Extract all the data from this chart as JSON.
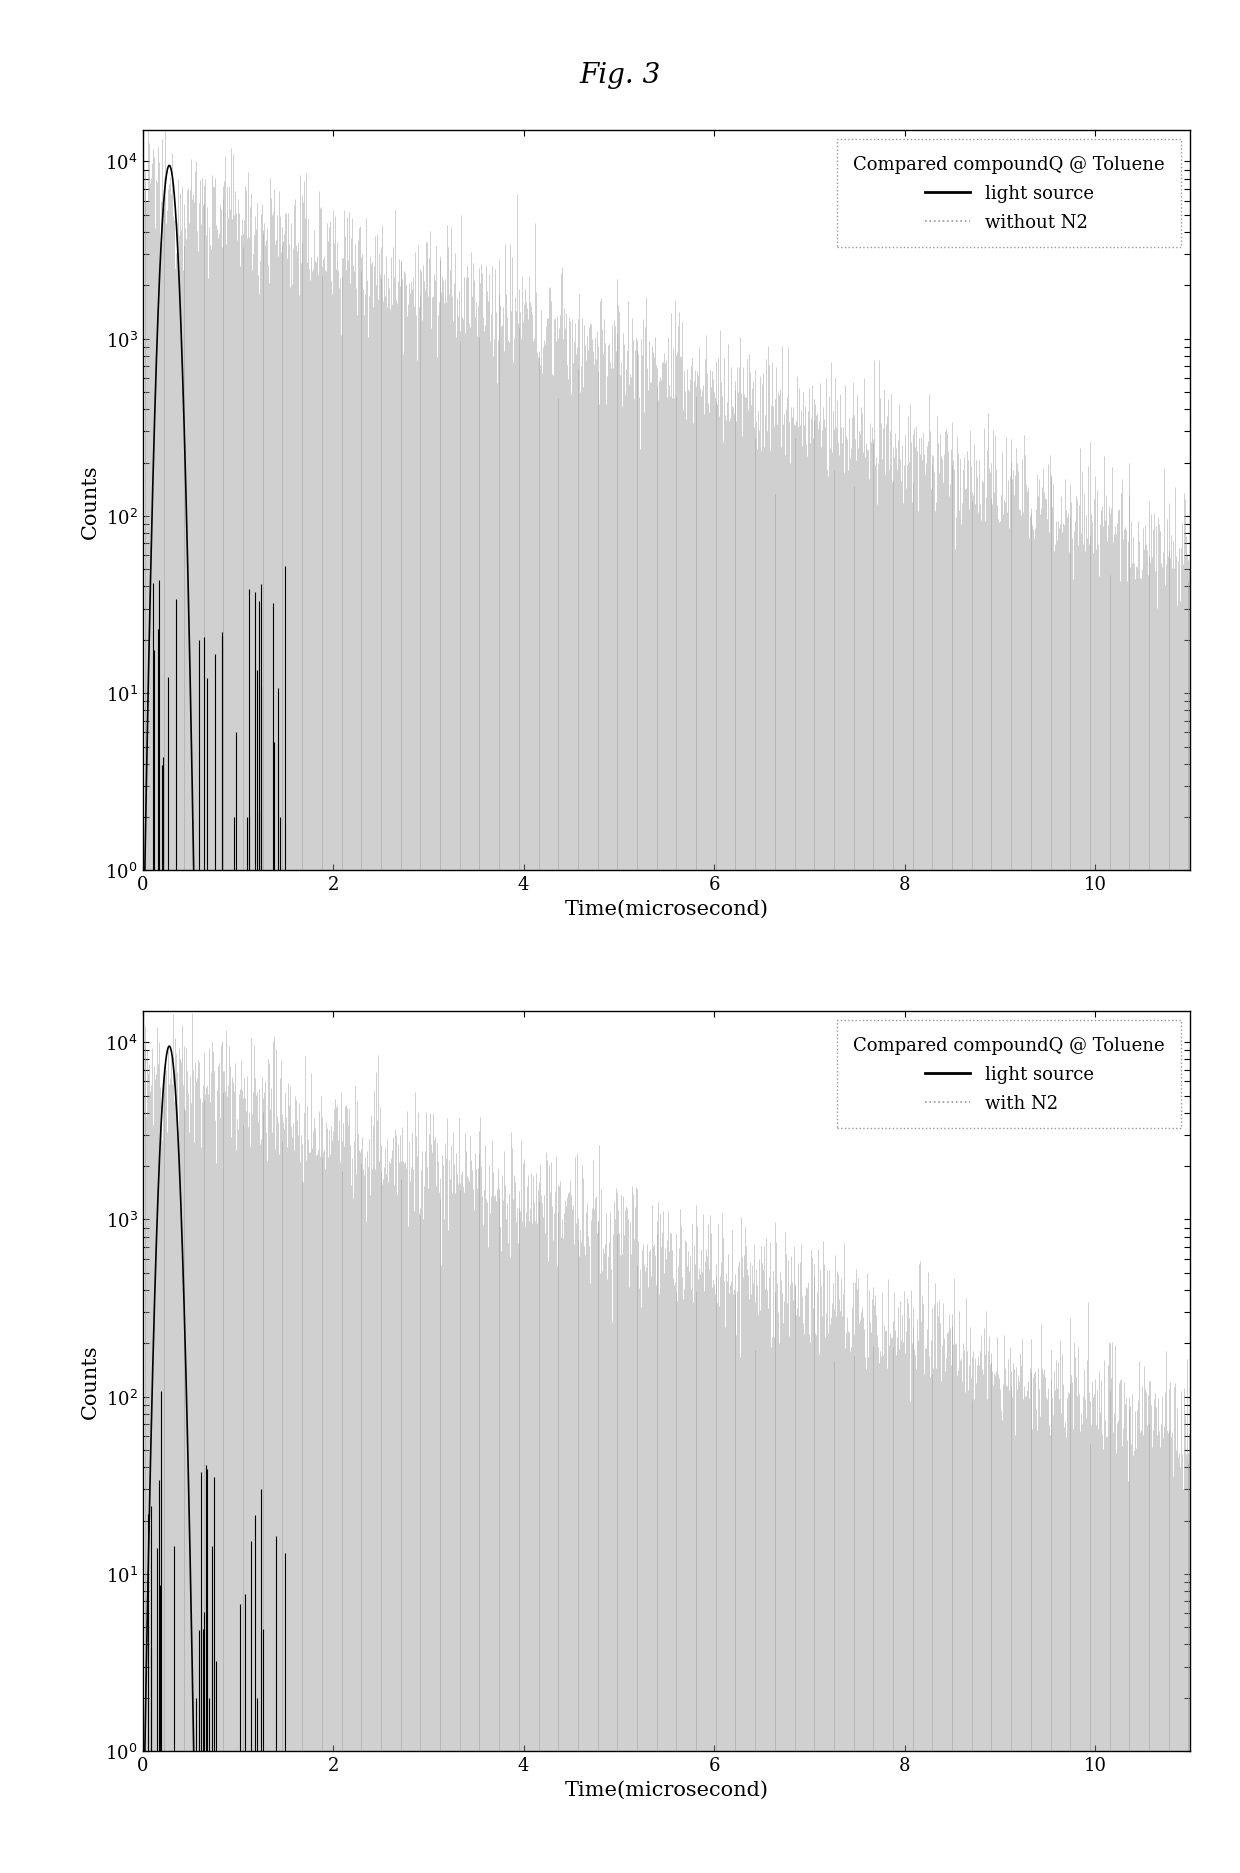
{
  "fig_title": "Fig. 3",
  "subplot1": {
    "title": "Compared compoundQ @ Toluene",
    "legend_line1": "light source",
    "legend_line2": "without N2",
    "xlabel": "Time(microsecond)",
    "ylabel": "Counts",
    "xlim": [
      0,
      11
    ],
    "ylim_log": [
      1,
      15000
    ],
    "xticks": [
      0,
      2,
      4,
      6,
      8,
      10
    ],
    "ytick_vals": [
      1,
      10,
      100,
      1000,
      10000
    ],
    "ytick_labels": [
      "10$^0$",
      "10$^1$",
      "10$^2$",
      "10$^3$",
      "10$^4$"
    ]
  },
  "subplot2": {
    "title": "Compared compoundQ @ Toluene",
    "legend_line1": "light source",
    "legend_line2": "with N2",
    "xlabel": "Time(microsecond)",
    "ylabel": "Counts",
    "xlim": [
      0,
      11
    ],
    "ylim_log": [
      1,
      15000
    ],
    "xticks": [
      0,
      2,
      4,
      6,
      8,
      10
    ],
    "ytick_vals": [
      1,
      10,
      100,
      1000,
      10000
    ],
    "ytick_labels": [
      "10$^0$",
      "10$^1$",
      "10$^2$",
      "10$^3$",
      "10$^4$"
    ]
  },
  "light_source_color": "#000000",
  "decay_color": "#999999",
  "spike_color": "#000000",
  "background_color": "#ffffff",
  "fig_title_fontsize": 20,
  "axis_label_fontsize": 15,
  "tick_fontsize": 13,
  "legend_fontsize": 13
}
